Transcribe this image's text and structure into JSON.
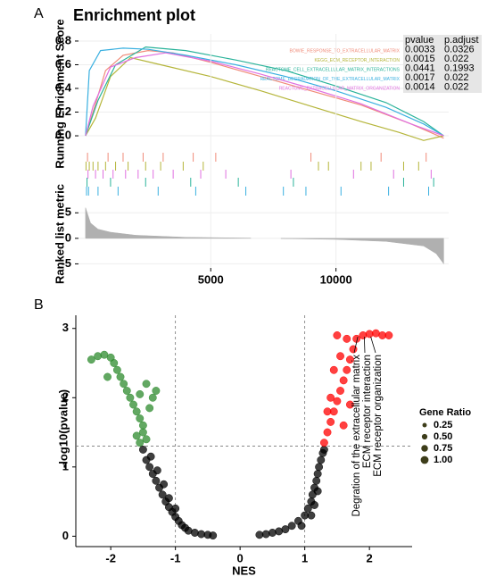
{
  "panel_labels": [
    "A",
    "B"
  ],
  "chart_data": [
    {
      "type": "line",
      "title": "Enrichment plot",
      "ylabel": "Running Enrichment Score",
      "xlim": [
        -280,
        14500
      ],
      "ylim": [
        -0.06,
        0.86
      ],
      "yticks": [
        {
          "value": 0,
          "label": "0.0"
        },
        0.2,
        0.4,
        0.6,
        0.8
      ],
      "grid": true,
      "table": {
        "header": [
          "pvalue",
          "p.adjust"
        ],
        "rows": [
          [
            0.0033,
            0.0326
          ],
          [
            0.0015,
            0.022
          ],
          [
            0.0441,
            0.1993
          ],
          [
            0.0017,
            0.022
          ],
          [
            0.0014,
            0.022
          ]
        ]
      },
      "series": [
        {
          "name": "BOWIE_RESPONSE_TO_EXTRACELLULAR_MATRIX",
          "color": "#f08a78",
          "x": [
            0,
            300,
            800,
            1500,
            2500,
            3500,
            5000,
            7000,
            9000,
            11000,
            13000,
            14300
          ],
          "y": [
            0,
            0.2,
            0.55,
            0.68,
            0.72,
            0.7,
            0.62,
            0.5,
            0.38,
            0.26,
            0.1,
            -0.02
          ],
          "hits": [
            80,
            900,
            1500,
            2300,
            3100,
            4300,
            5200,
            9000,
            11800,
            13600
          ]
        },
        {
          "name": "KEGG_ECM_RECEPTOR_INTERACTION",
          "color": "#b5b53a",
          "x": [
            0,
            400,
            1000,
            1800,
            3000,
            5000,
            7000,
            9000,
            11000,
            12500,
            13500,
            14300
          ],
          "y": [
            0,
            0.15,
            0.5,
            0.66,
            0.6,
            0.5,
            0.38,
            0.25,
            0.12,
            0.03,
            -0.04,
            0
          ],
          "hits": [
            20,
            150,
            300,
            500,
            800,
            1200,
            1700,
            2400,
            3000,
            3900,
            4700,
            9300,
            9700,
            11000,
            11400,
            12700,
            13300
          ]
        },
        {
          "name": "REACTOME_CELL_EXTRACELLULAR_MATRIX_INTERACTIONS",
          "color": "#2ab39a",
          "x": [
            0,
            500,
            1200,
            2400,
            4000,
            6000,
            8000,
            10000,
            12000,
            13500,
            14300
          ],
          "y": [
            0,
            0.3,
            0.6,
            0.75,
            0.72,
            0.64,
            0.55,
            0.42,
            0.28,
            0.12,
            0
          ],
          "hits": [
            60,
            1000,
            2400,
            4200,
            6100,
            8300,
            12700,
            13900
          ]
        },
        {
          "name": "REACTOME_DEGRADATION_OF_THE_EXTRACELLULAR_MATRIX",
          "color": "#3ab0e0",
          "x": [
            0,
            150,
            600,
            1500,
            2500,
            4000,
            6000,
            8000,
            10000,
            12000,
            13500,
            14300
          ],
          "y": [
            0,
            0.55,
            0.72,
            0.74,
            0.73,
            0.68,
            0.6,
            0.5,
            0.38,
            0.24,
            0.1,
            0
          ],
          "hits": [
            40,
            120,
            500,
            1300,
            2900,
            4400,
            6400,
            7900,
            8800,
            10200,
            12100,
            13700
          ]
        },
        {
          "name": "REACTOME_EXTRACELLULAR_MATRIX_ORGANIZATION",
          "color": "#e070e0",
          "x": [
            0,
            300,
            1000,
            2000,
            3200,
            5000,
            7000,
            9000,
            11000,
            13000,
            14300
          ],
          "y": [
            0,
            0.25,
            0.58,
            0.66,
            0.7,
            0.63,
            0.52,
            0.4,
            0.27,
            0.1,
            0
          ],
          "hits": [
            100,
            400,
            700,
            1100,
            1600,
            2100,
            2700,
            3500,
            4600,
            5600,
            8200,
            10700,
            12300,
            13800
          ]
        }
      ]
    },
    {
      "type": "area",
      "ylabel": "Ranked list metric",
      "color": "#b0b0b0",
      "xlim": [
        -280,
        14500
      ],
      "ylim": [
        -5.8,
        6.8
      ],
      "xticks": [
        5000,
        10000
      ],
      "yticks": [
        -5,
        0,
        5
      ],
      "grid": true,
      "x": [
        0,
        200,
        500,
        1000,
        2000,
        4000,
        6600,
        null,
        7800,
        10000,
        12000,
        13500,
        14000,
        14300
      ],
      "values": [
        6,
        3,
        1.8,
        1.2,
        0.6,
        0.2,
        0.05,
        null,
        -0.05,
        -0.2,
        -0.6,
        -1.5,
        -3,
        -5
      ]
    },
    {
      "type": "scatter",
      "xlabel": "NES",
      "ylabel": "-log10(pvalue)",
      "xlim": [
        -2.54,
        2.66
      ],
      "ylim": [
        -0.15,
        3.19
      ],
      "xticks": [
        -2,
        -1,
        0,
        1,
        2
      ],
      "yticks": [
        0,
        1,
        2,
        3
      ],
      "vlines": [
        -1,
        1
      ],
      "hlines": [
        1.3
      ],
      "size_legend": {
        "title": "Gene Ratio",
        "values": [
          0.25,
          {
            "value": 0.5,
            "label": "0.50"
          },
          0.75,
          {
            "value": 1,
            "label": "1.00"
          }
        ]
      },
      "annotations": [
        "Degration of the extracellular matrix",
        "ECM receptor interaction",
        "ECM receptor organization"
      ],
      "series": [
        {
          "color": "#000000",
          "x": [
            -1.5,
            -1.45,
            -1.4,
            -1.35,
            -1.3,
            -1.25,
            -1.2,
            -1.15,
            -1.1,
            -1.05,
            -1.0,
            -0.95,
            -0.9,
            -0.85,
            -0.8,
            -0.7,
            -0.6,
            -0.5,
            -0.42,
            -1.38,
            -1.28,
            -1.18,
            -1.1,
            -1.0,
            0.3,
            0.4,
            0.5,
            0.6,
            0.7,
            0.8,
            0.9,
            1.0,
            1.05,
            1.1,
            1.12,
            1.15,
            1.18,
            1.2,
            1.22,
            1.25,
            1.28,
            1.1,
            1.2,
            1.3,
            0.95,
            1.15
          ],
          "y": [
            1.25,
            1.1,
            1.0,
            0.9,
            0.8,
            0.7,
            0.6,
            0.5,
            0.42,
            0.35,
            0.28,
            0.22,
            0.16,
            0.12,
            0.08,
            0.05,
            0.03,
            0.02,
            0.01,
            1.15,
            0.95,
            0.75,
            0.55,
            0.4,
            0.02,
            0.03,
            0.05,
            0.07,
            0.1,
            0.15,
            0.22,
            0.3,
            0.4,
            0.5,
            0.6,
            0.7,
            0.8,
            0.9,
            1.0,
            1.1,
            1.2,
            0.3,
            0.65,
            1.25,
            0.15,
            0.45
          ]
        },
        {
          "color": "#2e8b2e",
          "x": [
            -2.3,
            -2.2,
            -2.1,
            -2.0,
            -1.95,
            -1.9,
            -1.85,
            -1.8,
            -1.75,
            -1.7,
            -1.65,
            -1.6,
            -1.55,
            -1.5,
            -1.5,
            -1.45,
            -1.55,
            -1.6,
            -1.4,
            -1.35,
            -1.3,
            -1.45,
            -2.05,
            -1.55
          ],
          "y": [
            2.55,
            2.6,
            2.62,
            2.58,
            2.5,
            2.4,
            2.3,
            2.2,
            2.1,
            2.0,
            1.9,
            1.8,
            1.7,
            1.6,
            1.5,
            1.4,
            1.35,
            1.45,
            1.85,
            2.0,
            2.1,
            2.2,
            2.3,
            2.05
          ]
        },
        {
          "color": "#ff0000",
          "x": [
            1.3,
            1.35,
            1.4,
            1.45,
            1.5,
            1.55,
            1.6,
            1.65,
            1.7,
            1.75,
            1.8,
            1.9,
            2.0,
            2.1,
            2.2,
            2.3,
            1.5,
            1.4,
            1.55,
            1.6,
            1.7,
            1.45,
            1.65,
            1.35
          ],
          "y": [
            1.35,
            1.5,
            1.65,
            1.8,
            1.95,
            2.1,
            2.25,
            2.4,
            2.55,
            2.7,
            2.85,
            2.9,
            2.92,
            2.93,
            2.9,
            2.9,
            2.9,
            2.0,
            2.6,
            1.6,
            1.9,
            2.4,
            2.85,
            1.8
          ]
        }
      ]
    }
  ]
}
